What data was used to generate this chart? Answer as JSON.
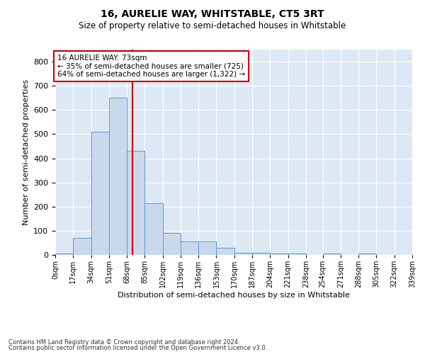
{
  "title_line1": "16, AURELIE WAY, WHITSTABLE, CT5 3RT",
  "title_line2": "Size of property relative to semi-detached houses in Whitstable",
  "xlabel": "Distribution of semi-detached houses by size in Whitstable",
  "ylabel": "Number of semi-detached properties",
  "annotation_title": "16 AURELIE WAY: 73sqm",
  "annotation_line2": "← 35% of semi-detached houses are smaller (725)",
  "annotation_line3": "64% of semi-detached houses are larger (1,322) →",
  "footer_line1": "Contains HM Land Registry data © Crown copyright and database right 2024.",
  "footer_line2": "Contains public sector information licensed under the Open Government Licence v3.0.",
  "property_size": 73,
  "bar_color": "#c9d9ec",
  "bar_edge_color": "#5b9bd5",
  "vline_color": "#cc0000",
  "background_color": "#dce9f5",
  "annotation_box_color": "#ffffff",
  "annotation_border_color": "#cc0000",
  "bin_edges": [
    0,
    17,
    34,
    51,
    68,
    85,
    102,
    119,
    136,
    153,
    170,
    187,
    204,
    221,
    238,
    254,
    271,
    288,
    305,
    322,
    339
  ],
  "bin_labels": [
    "0sqm",
    "17sqm",
    "34sqm",
    "51sqm",
    "68sqm",
    "85sqm",
    "102sqm",
    "119sqm",
    "136sqm",
    "153sqm",
    "170sqm",
    "187sqm",
    "204sqm",
    "221sqm",
    "238sqm",
    "254sqm",
    "271sqm",
    "288sqm",
    "305sqm",
    "322sqm",
    "339sqm"
  ],
  "counts": [
    5,
    70,
    510,
    650,
    430,
    215,
    90,
    55,
    55,
    30,
    10,
    10,
    5,
    5,
    0,
    5,
    0,
    5,
    0,
    0
  ],
  "ylim": [
    0,
    850
  ],
  "yticks": [
    0,
    100,
    200,
    300,
    400,
    500,
    600,
    700,
    800
  ]
}
